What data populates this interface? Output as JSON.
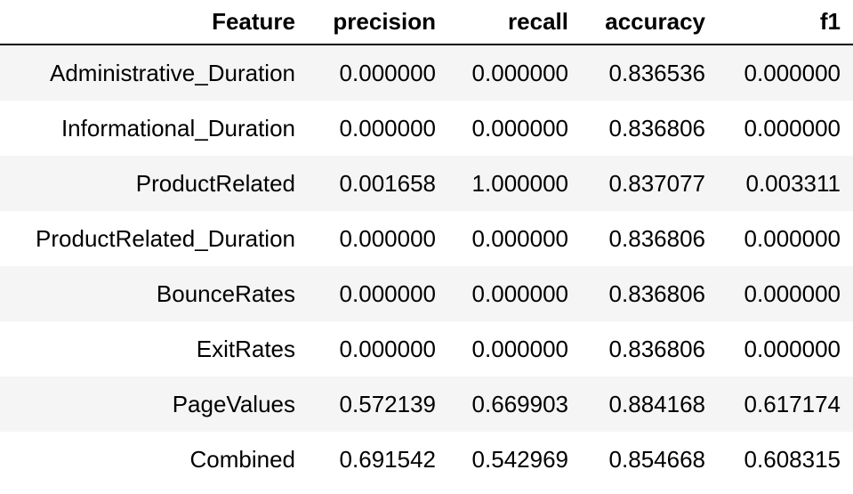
{
  "table": {
    "columns": [
      "Feature",
      "precision",
      "recall",
      "accuracy",
      "f1"
    ],
    "rows": [
      [
        "Administrative_Duration",
        "0.000000",
        "0.000000",
        "0.836536",
        "0.000000"
      ],
      [
        "Informational_Duration",
        "0.000000",
        "0.000000",
        "0.836806",
        "0.000000"
      ],
      [
        "ProductRelated",
        "0.001658",
        "1.000000",
        "0.837077",
        "0.003311"
      ],
      [
        "ProductRelated_Duration",
        "0.000000",
        "0.000000",
        "0.836806",
        "0.000000"
      ],
      [
        "BounceRates",
        "0.000000",
        "0.000000",
        "0.836806",
        "0.000000"
      ],
      [
        "ExitRates",
        "0.000000",
        "0.000000",
        "0.836806",
        "0.000000"
      ],
      [
        "PageValues",
        "0.572139",
        "0.669903",
        "0.884168",
        "0.617174"
      ],
      [
        "Combined",
        "0.691542",
        "0.542969",
        "0.854668",
        "0.608315"
      ]
    ]
  }
}
